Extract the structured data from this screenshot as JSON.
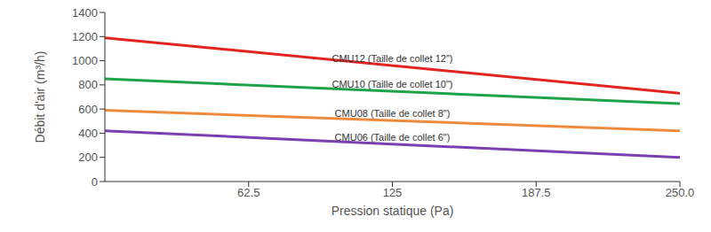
{
  "chart_data": {
    "type": "line",
    "x_label": "Pression statique (Pa)",
    "y_label": "Débit d'air (m³/h)",
    "x": [
      0,
      250
    ],
    "series": [
      {
        "name": "CMU12 (Taille de collet 12\")",
        "color": "#e3231e",
        "values": [
          1190,
          730
        ]
      },
      {
        "name": "CMU10 (Taille de collet 10\")",
        "color": "#1fa34a",
        "values": [
          850,
          645
        ]
      },
      {
        "name": "CMU08 (Taille de collet 8\")",
        "color": "#ec8a3e",
        "values": [
          590,
          420
        ]
      },
      {
        "name": "CMU06 (Taille de collet 6\")",
        "color": "#7a3fb0",
        "values": [
          420,
          200
        ]
      }
    ],
    "xlim": [
      0,
      250
    ],
    "xticks": [
      62.5,
      125,
      187.5,
      {
        "value": 250,
        "label": "250.0"
      }
    ],
    "ylim": [
      0,
      1400
    ],
    "yticks": [
      0,
      200,
      400,
      600,
      800,
      1000,
      1200,
      1400
    ],
    "grid": false
  }
}
